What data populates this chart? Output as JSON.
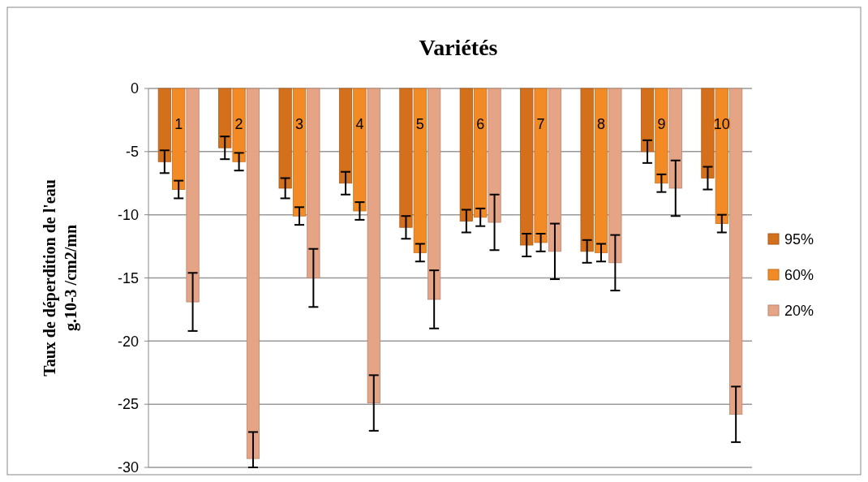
{
  "chart_data": {
    "type": "bar",
    "title": "Variétés",
    "ylabel": "Taux de déperdition de l'eau g.10-3 /cm2/mn",
    "categories": [
      "1",
      "2",
      "3",
      "4",
      "5",
      "6",
      "7",
      "8",
      "9",
      "10"
    ],
    "series": [
      {
        "name": "95%",
        "color": "#d4701c",
        "values": [
          -5.8,
          -4.7,
          -7.9,
          -7.5,
          -11.0,
          -10.5,
          -12.4,
          -12.9,
          -5.0,
          -7.1
        ],
        "errors": [
          0.9,
          0.9,
          0.8,
          0.9,
          0.9,
          0.9,
          0.9,
          0.9,
          0.9,
          0.9
        ]
      },
      {
        "name": "60%",
        "color": "#f28a26",
        "values": [
          -8.0,
          -5.8,
          -10.1,
          -9.7,
          -13.0,
          -10.2,
          -12.2,
          -13.0,
          -7.5,
          -10.7
        ],
        "errors": [
          0.7,
          0.7,
          0.7,
          0.7,
          0.7,
          0.7,
          0.7,
          0.7,
          0.7,
          0.7
        ]
      },
      {
        "name": "20%",
        "color": "#e6a486",
        "values": [
          -16.9,
          -29.3,
          -15.0,
          -24.9,
          -16.7,
          -10.6,
          -12.9,
          -13.8,
          -7.9,
          -25.8
        ],
        "errors": [
          2.3,
          [
            -30,
            -27.2
          ],
          2.3,
          2.2,
          2.3,
          2.2,
          2.2,
          2.2,
          2.2,
          2.2
        ]
      }
    ],
    "ylim": [
      -30,
      0
    ],
    "yticks": [
      0,
      -5,
      -10,
      -15,
      -20,
      -25,
      -30
    ],
    "grid": "y",
    "legend": "right"
  }
}
